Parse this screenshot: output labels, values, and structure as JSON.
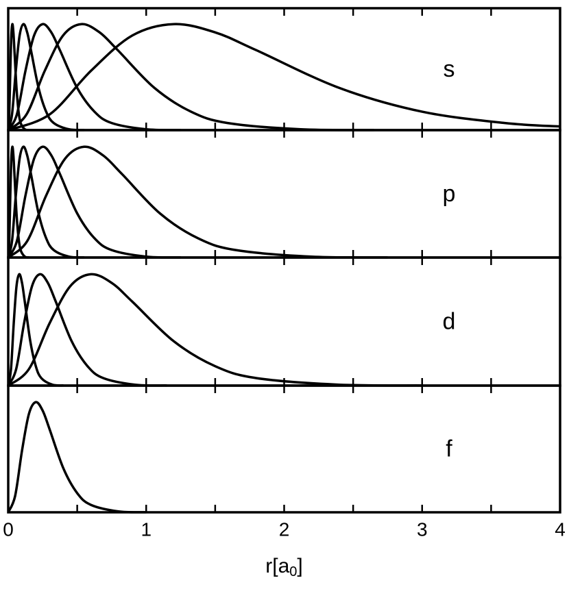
{
  "chart_data": [
    {
      "type": "line",
      "label": "s",
      "xlim": [
        0,
        4
      ],
      "ylim": [
        0,
        1.15
      ],
      "xticks": [
        0,
        1,
        2,
        3,
        4
      ],
      "xminor": [
        0.5,
        1.5,
        2.5,
        3.5
      ],
      "series": [
        {
          "color": "#000000",
          "x": [
            0,
            0.0075,
            0.015,
            0.0225,
            0.03,
            0.0375,
            0.045,
            0.06,
            0.075,
            0.09,
            0.12,
            0.15
          ],
          "values": [
            0,
            0.148,
            0.56,
            0.893,
            1,
            0.922,
            0.753,
            0.398,
            0.174,
            0.067,
            0.008,
            0.001
          ]
        },
        {
          "color": "#000000",
          "x": [
            0,
            0.0275,
            0.055,
            0.0825,
            0.11,
            0.1375,
            0.165,
            0.22,
            0.275,
            0.33,
            0.44,
            0.55
          ],
          "values": [
            0,
            0.148,
            0.56,
            0.893,
            1,
            0.922,
            0.753,
            0.398,
            0.174,
            0.067,
            0.008,
            0.001
          ]
        },
        {
          "color": "#000000",
          "x": [
            0,
            0.0625,
            0.125,
            0.1875,
            0.25,
            0.3125,
            0.375,
            0.5,
            0.625,
            0.75,
            1,
            1.25
          ],
          "values": [
            0,
            0.148,
            0.56,
            0.893,
            1,
            0.922,
            0.753,
            0.398,
            0.174,
            0.067,
            0.008,
            0.001
          ]
        },
        {
          "color": "#000000",
          "x": [
            0,
            0.1325,
            0.265,
            0.3975,
            0.53,
            0.6625,
            0.795,
            1.06,
            1.325,
            1.59,
            2.12,
            2.65
          ],
          "values": [
            0,
            0.148,
            0.56,
            0.893,
            1,
            0.922,
            0.753,
            0.398,
            0.174,
            0.067,
            0.008,
            0.001
          ]
        },
        {
          "color": "#000000",
          "x": [
            0,
            0.3,
            0.6,
            0.9,
            1.2,
            1.5,
            1.8,
            2.4,
            3,
            3.6,
            4
          ],
          "values": [
            0,
            0.148,
            0.56,
            0.893,
            1,
            0.922,
            0.753,
            0.398,
            0.174,
            0.067,
            0.034
          ]
        }
      ]
    },
    {
      "type": "line",
      "label": "p",
      "xlim": [
        0,
        4
      ],
      "ylim": [
        0,
        1.15
      ],
      "xticks": [
        0,
        1,
        2,
        3,
        4
      ],
      "xminor": [
        0.5,
        1.5,
        2.5,
        3.5
      ],
      "series": [
        {
          "color": "#000000",
          "x": [
            0,
            0.0075,
            0.015,
            0.0225,
            0.03,
            0.0375,
            0.045,
            0.06,
            0.075,
            0.09,
            0.12,
            0.15
          ],
          "values": [
            0,
            0.148,
            0.56,
            0.893,
            1,
            0.922,
            0.753,
            0.398,
            0.174,
            0.067,
            0.008,
            0.001
          ]
        },
        {
          "color": "#000000",
          "x": [
            0,
            0.0275,
            0.055,
            0.0825,
            0.11,
            0.1375,
            0.165,
            0.22,
            0.275,
            0.33,
            0.44,
            0.55
          ],
          "values": [
            0,
            0.148,
            0.56,
            0.893,
            1,
            0.922,
            0.753,
            0.398,
            0.174,
            0.067,
            0.008,
            0.001
          ]
        },
        {
          "color": "#000000",
          "x": [
            0,
            0.0625,
            0.125,
            0.1875,
            0.25,
            0.3125,
            0.375,
            0.5,
            0.625,
            0.75,
            1,
            1.25
          ],
          "values": [
            0,
            0.148,
            0.56,
            0.893,
            1,
            0.922,
            0.753,
            0.398,
            0.174,
            0.067,
            0.008,
            0.001
          ]
        },
        {
          "color": "#000000",
          "x": [
            0,
            0.1375,
            0.275,
            0.4125,
            0.55,
            0.6875,
            0.825,
            1.1,
            1.375,
            1.65,
            2.2,
            2.75
          ],
          "values": [
            0,
            0.148,
            0.56,
            0.893,
            1,
            0.922,
            0.753,
            0.398,
            0.174,
            0.067,
            0.008,
            0.001
          ]
        }
      ]
    },
    {
      "type": "line",
      "label": "d",
      "xlim": [
        0,
        4
      ],
      "ylim": [
        0,
        1.15
      ],
      "xticks": [
        0,
        1,
        2,
        3,
        4
      ],
      "xminor": [
        0.5,
        1.5,
        2.5,
        3.5
      ],
      "series": [
        {
          "color": "#000000",
          "x": [
            0,
            0.02,
            0.04,
            0.06,
            0.08,
            0.1,
            0.12,
            0.16,
            0.2,
            0.24,
            0.32,
            0.4
          ],
          "values": [
            0,
            0.148,
            0.56,
            0.893,
            1,
            0.922,
            0.753,
            0.398,
            0.174,
            0.067,
            0.008,
            0.001
          ]
        },
        {
          "color": "#000000",
          "x": [
            0,
            0.0575,
            0.115,
            0.1725,
            0.23,
            0.2875,
            0.345,
            0.46,
            0.575,
            0.69,
            0.92,
            1.15
          ],
          "values": [
            0,
            0.148,
            0.56,
            0.893,
            1,
            0.922,
            0.753,
            0.398,
            0.174,
            0.067,
            0.008,
            0.001
          ]
        },
        {
          "color": "#000000",
          "x": [
            0,
            0.15,
            0.3,
            0.45,
            0.6,
            0.75,
            0.9,
            1.2,
            1.5,
            1.8,
            2.4,
            3
          ],
          "values": [
            0,
            0.148,
            0.56,
            0.893,
            1,
            0.922,
            0.753,
            0.398,
            0.174,
            0.067,
            0.008,
            0.001
          ]
        }
      ]
    },
    {
      "type": "line",
      "label": "f",
      "xlim": [
        0,
        4
      ],
      "ylim": [
        0,
        1.15
      ],
      "xticks": [
        0,
        1,
        2,
        3,
        4
      ],
      "xminor": [
        0.5,
        1.5,
        2.5,
        3.5
      ],
      "xlabel": [
        "r[a",
        "0",
        "]"
      ],
      "series": [
        {
          "color": "#000000",
          "x": [
            0,
            0.05,
            0.1,
            0.15,
            0.2,
            0.25,
            0.3,
            0.4,
            0.5,
            0.6,
            0.8,
            1
          ],
          "values": [
            0,
            0.148,
            0.56,
            0.893,
            1,
            0.922,
            0.753,
            0.398,
            0.174,
            0.067,
            0.008,
            0.001
          ]
        }
      ]
    }
  ]
}
